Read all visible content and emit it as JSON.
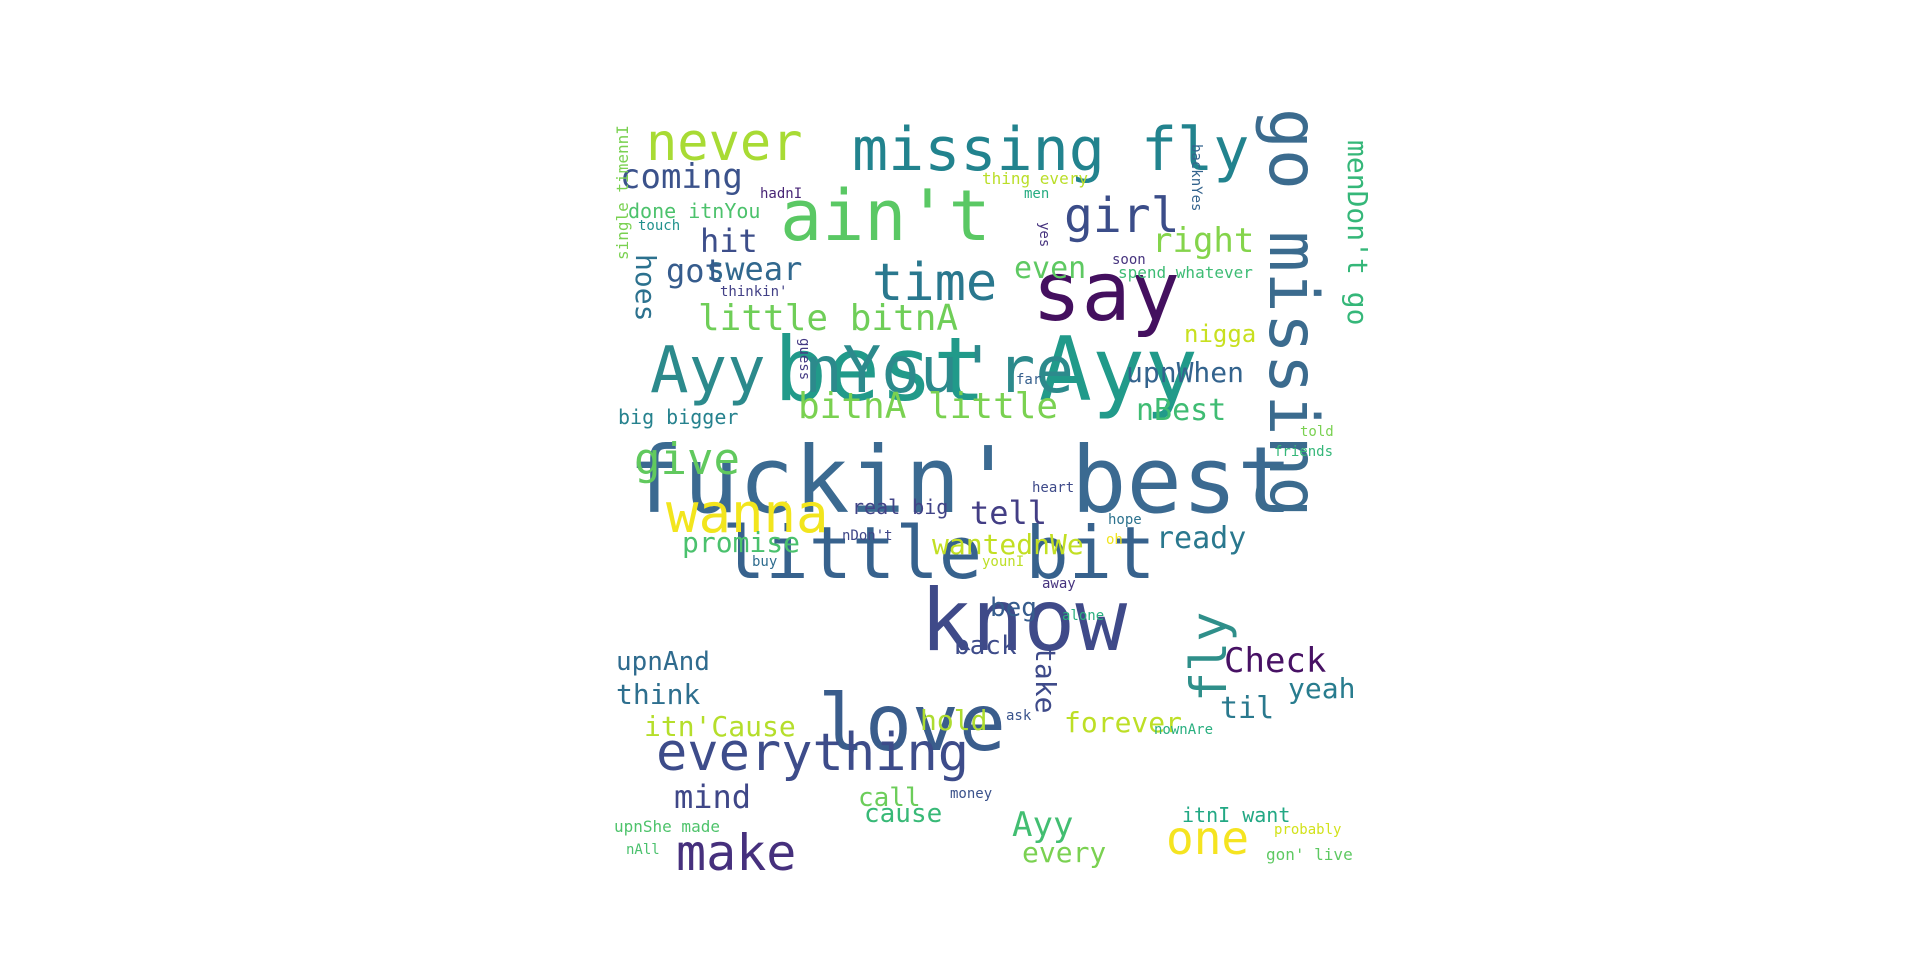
{
  "words": [
    {
      "text": "fuckin' best",
      "color": "#3b6a91"
    },
    {
      "text": "best Ayy",
      "color": "#219a8a"
    },
    {
      "text": "little bit",
      "color": "#37628d"
    },
    {
      "text": "know",
      "color": "#3f4a89"
    },
    {
      "text": "say",
      "color": "#44105f"
    },
    {
      "text": "love",
      "color": "#3a5d8c"
    },
    {
      "text": "Ayy nYou're",
      "color": "#2c8a8c"
    },
    {
      "text": "go missing",
      "color": "#3b6b8e"
    },
    {
      "text": "ain't",
      "color": "#5ac864"
    },
    {
      "text": "missing fly",
      "color": "#22838e"
    },
    {
      "text": "everything",
      "color": "#3d4c8a"
    },
    {
      "text": "wanna",
      "color": "#f2e51d"
    },
    {
      "text": "time",
      "color": "#2a788e"
    },
    {
      "text": "never",
      "color": "#a8db34"
    },
    {
      "text": "make",
      "color": "#46307d"
    },
    {
      "text": "girl",
      "color": "#3b4d89"
    },
    {
      "text": "fly",
      "color": "#2f8f8a"
    },
    {
      "text": "one",
      "color": "#f5e420"
    },
    {
      "text": "give",
      "color": "#61c95e"
    },
    {
      "text": "little bitnA",
      "color": "#6fce58"
    },
    {
      "text": "bitnA little",
      "color": "#7ad151"
    },
    {
      "text": "Check",
      "color": "#471164"
    },
    {
      "text": "Ayy",
      "color": "#42be71"
    },
    {
      "text": "mind",
      "color": "#3f4788"
    },
    {
      "text": "coming",
      "color": "#3b528b"
    },
    {
      "text": "right",
      "color": "#84d44b"
    },
    {
      "text": "hit",
      "color": "#3d4e8a"
    },
    {
      "text": "ready",
      "color": "#2a788e"
    },
    {
      "text": "tell",
      "color": "#433e85"
    },
    {
      "text": "even",
      "color": "#5ec962"
    },
    {
      "text": "nBest",
      "color": "#3fbc73"
    },
    {
      "text": "menDon't go",
      "color": "#35b779"
    },
    {
      "text": "swear",
      "color": "#31688e"
    },
    {
      "text": "got",
      "color": "#365c8d"
    },
    {
      "text": "forever",
      "color": "#bddf26"
    },
    {
      "text": "hoes",
      "color": "#2c718e"
    },
    {
      "text": "upnWhen",
      "color": "#33638d"
    },
    {
      "text": "promise",
      "color": "#4ac16d"
    },
    {
      "text": "wantednWe",
      "color": "#c2df23"
    },
    {
      "text": "itn'Cause",
      "color": "#b5de2b"
    },
    {
      "text": "hold",
      "color": "#addc30"
    },
    {
      "text": "yeah",
      "color": "#287c8e"
    },
    {
      "text": "til",
      "color": "#2a798e"
    },
    {
      "text": "think",
      "color": "#2e6f8e"
    },
    {
      "text": "upnAnd",
      "color": "#2f6b8e"
    },
    {
      "text": "take",
      "color": "#3e4a89"
    },
    {
      "text": "back",
      "color": "#3e4c8a"
    },
    {
      "text": "every",
      "color": "#7ad151"
    },
    {
      "text": "call",
      "color": "#6ccd5a"
    },
    {
      "text": "cause",
      "color": "#38b977"
    },
    {
      "text": "beg",
      "color": "#365c8d"
    },
    {
      "text": "nigga",
      "color": "#c8e020"
    },
    {
      "text": "done itnYou",
      "color": "#4cc26c"
    },
    {
      "text": "real big",
      "color": "#414487"
    },
    {
      "text": "big bigger",
      "color": "#26828e"
    },
    {
      "text": "itnI want",
      "color": "#22a884"
    },
    {
      "text": "thing every",
      "color": "#bade28"
    },
    {
      "text": "spend whatever",
      "color": "#3dbc74"
    },
    {
      "text": "single timennI",
      "color": "#7ad151"
    },
    {
      "text": "upnShe made",
      "color": "#4ec36b"
    },
    {
      "text": "gon' live",
      "color": "#5ec962"
    },
    {
      "text": "backnYes",
      "color": "#33638d"
    },
    {
      "text": "hadnI",
      "color": "#482576"
    },
    {
      "text": "touch",
      "color": "#21918c"
    },
    {
      "text": "men",
      "color": "#25ac82"
    },
    {
      "text": "yes",
      "color": "#46337e"
    },
    {
      "text": "soon",
      "color": "#46337e"
    },
    {
      "text": "thinkin'",
      "color": "#424086"
    },
    {
      "text": "guess",
      "color": "#443983"
    },
    {
      "text": "far",
      "color": "#355f8d"
    },
    {
      "text": "told",
      "color": "#7ad151"
    },
    {
      "text": "friends",
      "color": "#35b779"
    },
    {
      "text": "heart",
      "color": "#3e4a89"
    },
    {
      "text": "hope",
      "color": "#2c728e"
    },
    {
      "text": "oh",
      "color": "#f1e51d"
    },
    {
      "text": "nDon't",
      "color": "#3f4788"
    },
    {
      "text": "buy",
      "color": "#2f6c8e"
    },
    {
      "text": "younI",
      "color": "#bddf26"
    },
    {
      "text": "away",
      "color": "#46337e"
    },
    {
      "text": "alone",
      "color": "#29af7f"
    },
    {
      "text": "ask",
      "color": "#3a548c"
    },
    {
      "text": "nownAre",
      "color": "#29af7f"
    },
    {
      "text": "money",
      "color": "#3b528b"
    },
    {
      "text": "probably",
      "color": "#d2e21b"
    },
    {
      "text": "nAll",
      "color": "#4ac16d"
    }
  ]
}
